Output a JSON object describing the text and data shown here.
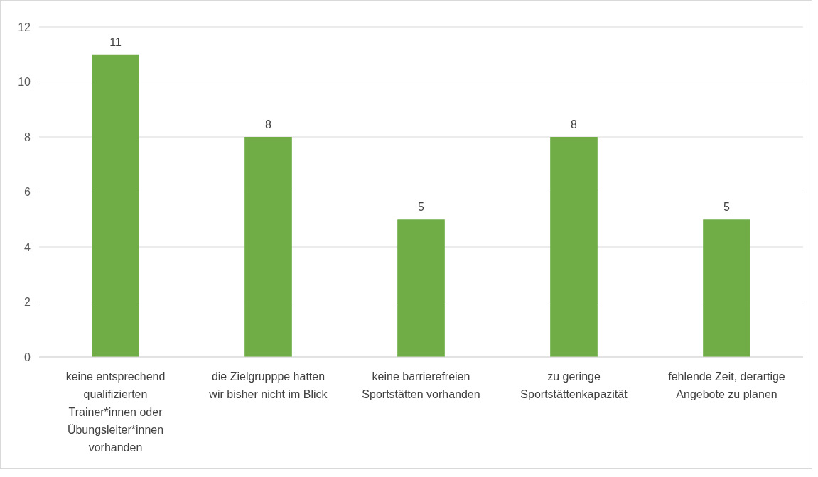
{
  "chart_data": {
    "type": "bar",
    "categories": [
      "keine entsprechend qualifizierten Trainer*innen oder Übungsleiter*innen vorhanden",
      "die Zielgrupppe hatten wir bisher nicht im Blick",
      "keine barrierefreien Sportstätten vorhanden",
      "zu geringe Sportstättenkapazität",
      "fehlende Zeit, derartige Angebote zu planen"
    ],
    "values": [
      11,
      8,
      5,
      8,
      5
    ],
    "color": "#70ad47",
    "ylim": [
      0,
      12
    ],
    "yticks": [
      0,
      2,
      4,
      6,
      8,
      10,
      12
    ],
    "grid": "y",
    "data_labels": true
  }
}
